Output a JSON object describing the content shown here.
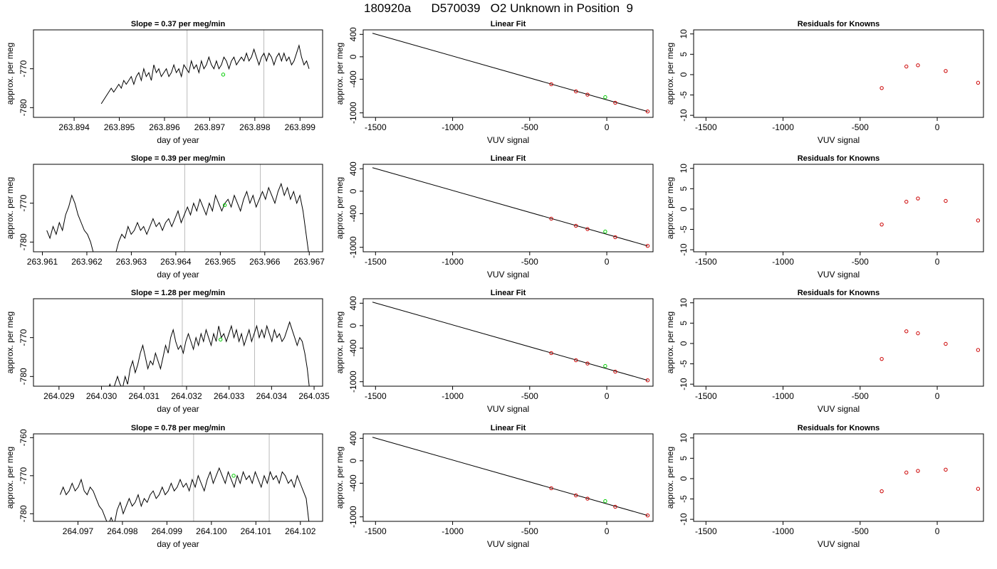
{
  "title": "180920a      D570039   O2 Unknown in Position  9",
  "colors": {
    "line": "#000000",
    "known": "#cc0000",
    "unknown": "#00cc00",
    "cursor": "#bbbbbb"
  },
  "labels": {
    "slope_prefix": "Slope = ",
    "slope_suffix": "  per meg/min",
    "fit_title": "Linear Fit",
    "resid_title": "Residuals for Knowns",
    "time_xlabel": "day of year",
    "ylabel": "approx. per meg",
    "vuv_xlabel": "VUV signal"
  },
  "chart_data": [
    {
      "type": "line",
      "slope": "0.37",
      "x_ticks": [
        "263.894",
        "263.895",
        "263.896",
        "263.897",
        "263.898",
        "263.899"
      ],
      "xlim": [
        263.8931,
        263.8995
      ],
      "y_ticks": [
        "-770",
        "-780"
      ],
      "ylim": [
        -782.5,
        -760
      ],
      "cursor_x": [
        263.8965,
        263.8982
      ],
      "marker": [
        263.8973,
        -771.5
      ],
      "start": 263.8946,
      "trace": [
        -779,
        -778,
        -777,
        -776,
        -775,
        -776,
        -775,
        -774,
        -775,
        -773,
        -774,
        -773,
        -772,
        -774,
        -772,
        -771,
        -773,
        -770,
        -772,
        -771,
        -773,
        -769,
        -771,
        -770,
        -772,
        -771,
        -770,
        -772,
        -771,
        -769,
        -771,
        -770,
        -772,
        -769,
        -770,
        -771,
        -768,
        -770,
        -769,
        -771,
        -768,
        -770,
        -769,
        -767,
        -769,
        -770,
        -768,
        -770,
        -769,
        -767,
        -768,
        -770,
        -768,
        -767,
        -769,
        -768,
        -767,
        -768,
        -766,
        -768,
        -767,
        -765,
        -767,
        -769,
        -767,
        -766,
        -768,
        -766,
        -767,
        -769,
        -767,
        -766,
        -768,
        -766,
        -768,
        -767,
        -769,
        -768,
        -766,
        -764,
        -767,
        -769,
        -768,
        -770
      ]
    },
    {
      "type": "line",
      "slope": "0.39",
      "x_ticks": [
        "263.961",
        "263.962",
        "263.963",
        "263.964",
        "263.965",
        "263.966",
        "263.967"
      ],
      "xlim": [
        263.9608,
        263.9673
      ],
      "y_ticks": [
        "-770",
        "-780"
      ],
      "ylim": [
        -782.5,
        -760
      ],
      "cursor_x": [
        263.9642,
        263.9659
      ],
      "marker": [
        263.9651,
        -770.5
      ],
      "start": 263.9611,
      "trace": [
        -777,
        -779,
        -776,
        -778,
        -775,
        -777,
        -773,
        -771,
        -768,
        -770,
        -773,
        -775,
        -777,
        -778,
        -780,
        -783,
        -784,
        -784,
        -784,
        -784,
        -784,
        -784,
        -783,
        -780,
        -778,
        -779,
        -776,
        -778,
        -777,
        -775,
        -777,
        -776,
        -778,
        -776,
        -774,
        -776,
        -775,
        -777,
        -775,
        -774,
        -776,
        -774,
        -772,
        -775,
        -773,
        -771,
        -773,
        -770,
        -772,
        -769,
        -771,
        -773,
        -770,
        -772,
        -768,
        -770,
        -772,
        -770,
        -769,
        -771,
        -768,
        -770,
        -772,
        -769,
        -767,
        -770,
        -768,
        -771,
        -769,
        -767,
        -769,
        -766,
        -768,
        -770,
        -767,
        -765,
        -768,
        -766,
        -769,
        -767,
        -770,
        -768,
        -772,
        -778,
        -784
      ]
    },
    {
      "type": "line",
      "slope": "1.28",
      "x_ticks": [
        "264.029",
        "264.030",
        "264.031",
        "264.032",
        "264.033",
        "264.034",
        "264.035"
      ],
      "xlim": [
        264.0284,
        264.0352
      ],
      "y_ticks": [
        "-770",
        "-780"
      ],
      "ylim": [
        -782.5,
        -760
      ],
      "cursor_x": [
        264.0319,
        264.0336
      ],
      "marker": [
        264.0328,
        -770.5
      ],
      "start": 264.0299,
      "trace": [
        -784,
        -784,
        -784,
        -784,
        -784,
        -782,
        -784,
        -782,
        -780,
        -782,
        -783,
        -780,
        -782,
        -778,
        -776,
        -779,
        -777,
        -774,
        -772,
        -775,
        -778,
        -776,
        -777,
        -774,
        -776,
        -778,
        -775,
        -772,
        -774,
        -770,
        -768,
        -771,
        -773,
        -772,
        -774,
        -771,
        -769,
        -771,
        -773,
        -770,
        -772,
        -769,
        -771,
        -768,
        -770,
        -772,
        -769,
        -771,
        -767,
        -770,
        -769,
        -771,
        -769,
        -767,
        -770,
        -768,
        -771,
        -769,
        -772,
        -770,
        -768,
        -771,
        -769,
        -767,
        -770,
        -768,
        -770,
        -767,
        -769,
        -771,
        -768,
        -770,
        -769,
        -771,
        -770,
        -768,
        -766,
        -768,
        -770,
        -772,
        -770,
        -771,
        -774,
        -778,
        -784
      ]
    },
    {
      "type": "line",
      "slope": "0.78",
      "x_ticks": [
        "264.097",
        "264.098",
        "264.099",
        "264.100",
        "264.101",
        "264.102"
      ],
      "xlim": [
        264.096,
        264.1025
      ],
      "y_ticks": [
        "-760",
        "-770",
        "-780"
      ],
      "ylim": [
        -782,
        -759
      ],
      "cursor_x": [
        264.0996,
        264.1013
      ],
      "marker": [
        264.1005,
        -770
      ],
      "start": 264.0966,
      "trace": [
        -775,
        -773,
        -775,
        -774,
        -772,
        -774,
        -773,
        -771,
        -774,
        -775,
        -773,
        -774,
        -776,
        -778,
        -779,
        -781,
        -783,
        -781,
        -783,
        -779,
        -777,
        -780,
        -778,
        -776,
        -778,
        -777,
        -775,
        -778,
        -776,
        -777,
        -775,
        -774,
        -776,
        -775,
        -773,
        -775,
        -774,
        -772,
        -774,
        -773,
        -771,
        -773,
        -772,
        -774,
        -771,
        -773,
        -770,
        -772,
        -774,
        -771,
        -769,
        -772,
        -770,
        -768,
        -770,
        -772,
        -769,
        -771,
        -773,
        -770,
        -772,
        -769,
        -771,
        -770,
        -772,
        -769,
        -771,
        -773,
        -770,
        -772,
        -769,
        -771,
        -770,
        -772,
        -769,
        -770,
        -772,
        -771,
        -773,
        -770,
        -772,
        -774,
        -776,
        -783
      ]
    },
    {
      "type": "scatter",
      "title": "Linear Fit",
      "x_ticks": [
        "-1500",
        "-1000",
        "-500",
        "0"
      ],
      "y_ticks": [
        "400",
        "0",
        "-400",
        "-1000"
      ],
      "xlim": [
        -1580,
        300
      ],
      "ylim": [
        -1080,
        480
      ],
      "fit_line": [
        [
          -1520,
          420
        ],
        [
          265,
          -975
        ]
      ],
      "knowns": [
        [
          -360,
          -490
        ],
        [
          -200,
          -617
        ],
        [
          -125,
          -675
        ],
        [
          55,
          -820
        ],
        [
          265,
          -975
        ]
      ],
      "unknown": [
        [
          -10,
          -720
        ]
      ]
    },
    {
      "type": "scatter",
      "title": "Residuals for Knowns",
      "x_ticks": [
        "-1500",
        "-1000",
        "-500",
        "0"
      ],
      "y_ticks": [
        "10",
        "5",
        "0",
        "-5",
        "-10"
      ],
      "xlim": [
        -1580,
        300
      ],
      "ylim": [
        -10.5,
        11
      ],
      "points": [
        [
          -360,
          -3.3
        ],
        [
          -200,
          2.0
        ],
        [
          -125,
          2.3
        ],
        [
          55,
          0.9
        ],
        [
          265,
          -2.0
        ]
      ]
    },
    {
      "type": "scatter",
      "title": "Residuals for Knowns",
      "x_ticks": [
        "-1500",
        "-1000",
        "-500",
        "0"
      ],
      "y_ticks": [
        "10",
        "5",
        "0",
        "-5",
        "-10"
      ],
      "xlim": [
        -1580,
        300
      ],
      "ylim": [
        -10.5,
        11
      ],
      "points": [
        [
          -360,
          -3.8
        ],
        [
          -200,
          1.8
        ],
        [
          -125,
          2.6
        ],
        [
          55,
          2.0
        ],
        [
          265,
          -2.8
        ]
      ]
    },
    {
      "type": "scatter",
      "title": "Residuals for Knowns",
      "x_ticks": [
        "-1500",
        "-1000",
        "-500",
        "0"
      ],
      "y_ticks": [
        "10",
        "5",
        "0",
        "-5",
        "-10"
      ],
      "xlim": [
        -1580,
        300
      ],
      "ylim": [
        -10.5,
        11
      ],
      "points": [
        [
          -360,
          -3.8
        ],
        [
          -200,
          3.0
        ],
        [
          -125,
          2.5
        ],
        [
          55,
          -0.1
        ],
        [
          265,
          -1.6
        ]
      ]
    },
    {
      "type": "scatter",
      "title": "Residuals for Knowns",
      "x_ticks": [
        "-1500",
        "-1000",
        "-500",
        "0"
      ],
      "y_ticks": [
        "10",
        "5",
        "0",
        "-5",
        "-10"
      ],
      "xlim": [
        -1580,
        300
      ],
      "ylim": [
        -10.5,
        11
      ],
      "points": [
        [
          -360,
          -3.1
        ],
        [
          -200,
          1.5
        ],
        [
          -125,
          1.9
        ],
        [
          55,
          2.2
        ],
        [
          265,
          -2.5
        ]
      ]
    }
  ]
}
